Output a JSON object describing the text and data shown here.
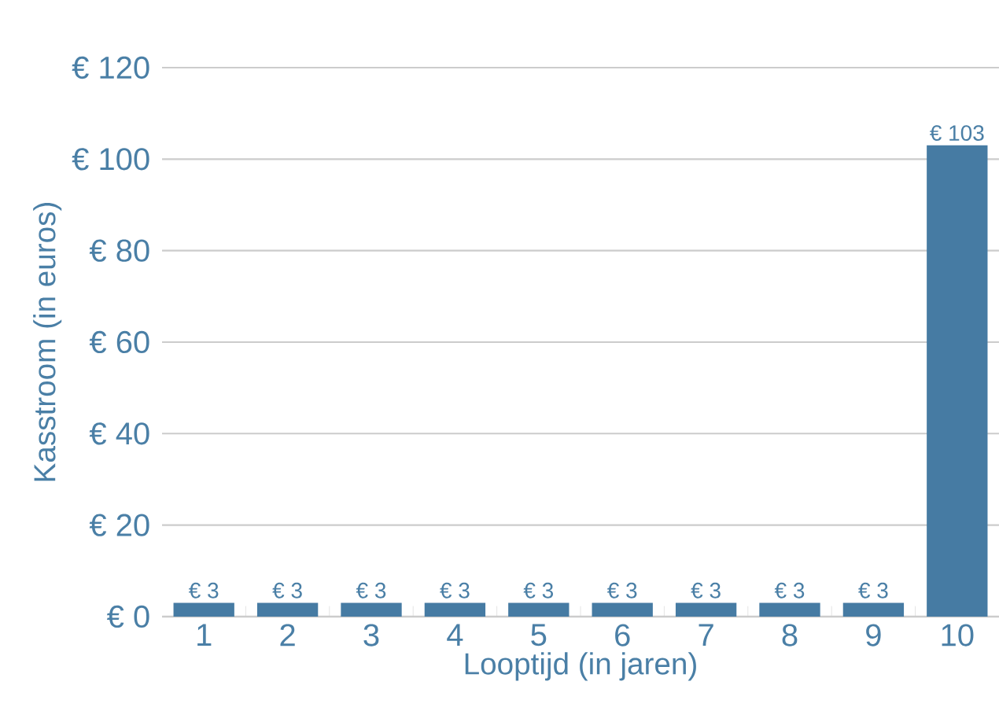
{
  "chart_data": {
    "type": "bar",
    "xlabel": "Looptijd (in jaren)",
    "ylabel": "Kasstroom (in euros)",
    "categories": [
      "1",
      "2",
      "3",
      "4",
      "5",
      "6",
      "7",
      "8",
      "9",
      "10"
    ],
    "values": [
      3,
      3,
      3,
      3,
      3,
      3,
      3,
      3,
      3,
      103
    ],
    "value_labels": [
      "€ 3",
      "€ 3",
      "€ 3",
      "€ 3",
      "€ 3",
      "€ 3",
      "€ 3",
      "€ 3",
      "€ 3",
      "€ 103"
    ],
    "color": "#467ba3",
    "ylim": [
      0,
      120
    ],
    "yticks": [
      {
        "value": 0,
        "label": "€ 0"
      },
      {
        "value": 20,
        "label": "€ 20"
      },
      {
        "value": 40,
        "label": "€ 40"
      },
      {
        "value": 60,
        "label": "€ 60"
      },
      {
        "value": 80,
        "label": "€ 80"
      },
      {
        "value": 100,
        "label": "€ 100"
      },
      {
        "value": 120,
        "label": "€ 120"
      }
    ],
    "grid": "y"
  }
}
